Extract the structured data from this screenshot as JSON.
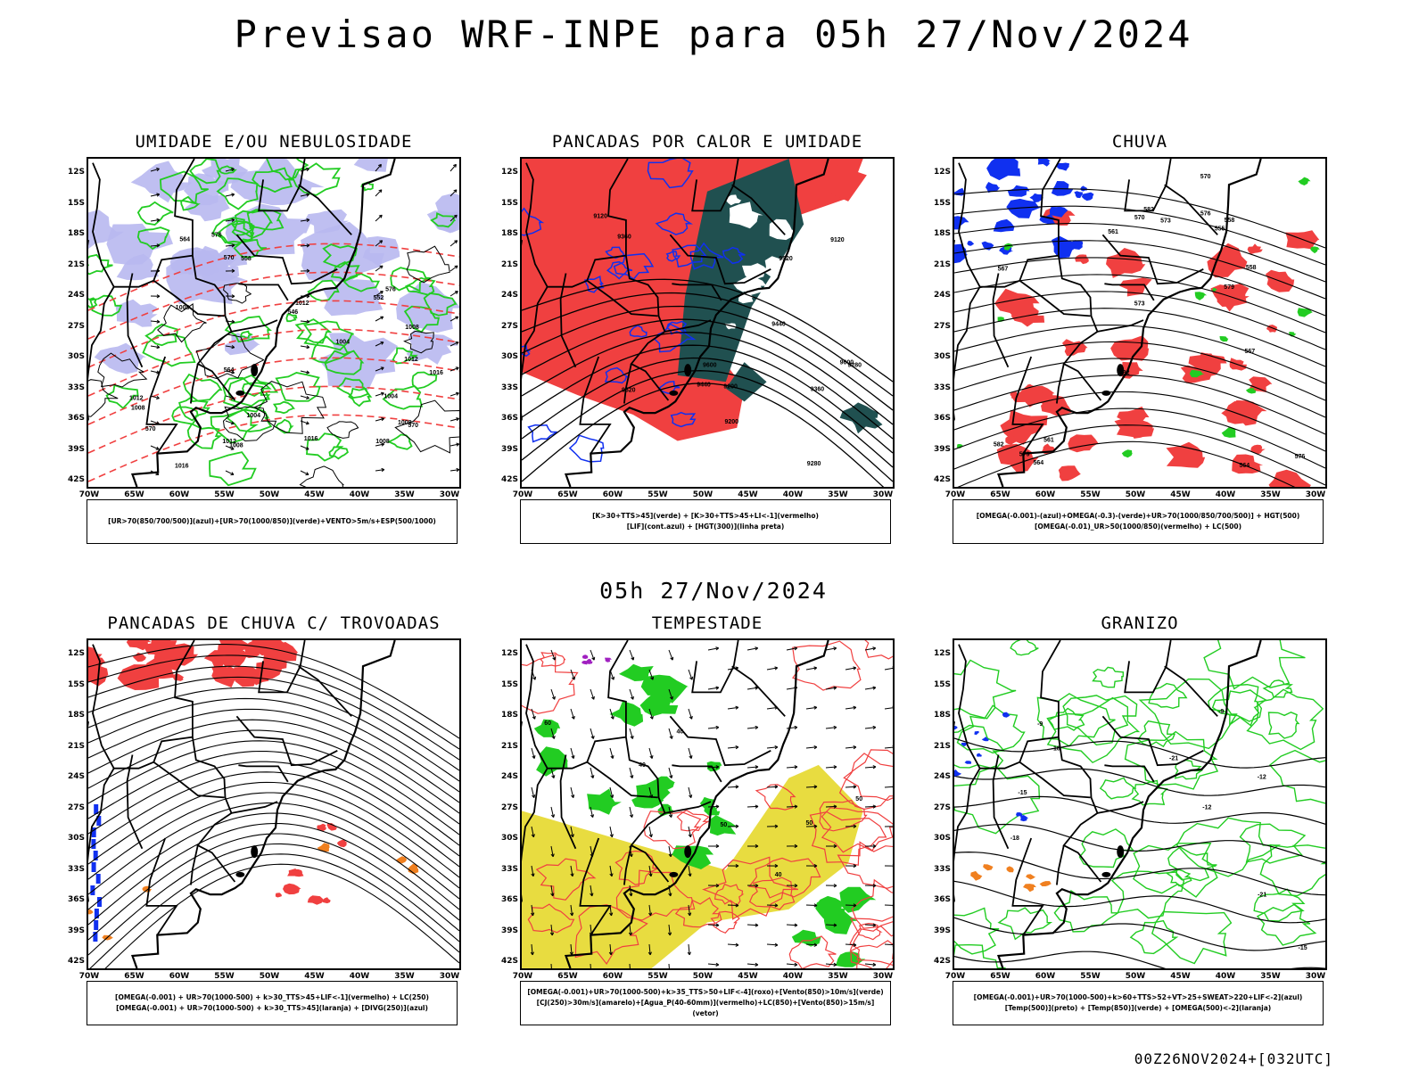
{
  "title": "Previsao WRF-INPE  para 05h 27/Nov/2024",
  "mid_title": "05h 27/Nov/2024",
  "footer": "00Z26NOV2024+[032UTC]",
  "axes": {
    "lat_labels": [
      "12S",
      "15S",
      "18S",
      "21S",
      "24S",
      "27S",
      "30S",
      "33S",
      "36S",
      "39S",
      "42S"
    ],
    "lon_labels": [
      "70W",
      "65W",
      "60W",
      "55W",
      "50W",
      "45W",
      "40W",
      "35W",
      "30W"
    ]
  },
  "colors": {
    "red": "#f04040",
    "green": "#22cc22",
    "blue": "#1030f0",
    "lavender": "#b8b8f0",
    "darkteal": "#205050",
    "yellow": "#e8dc40",
    "orange": "#f08020",
    "purple": "#a020c0"
  },
  "panels": [
    {
      "title": "UMIDADE E/OU NEBULOSIDADE",
      "legend": [
        "[UR>70(850/700/500)](azul)+[UR>70(1000/850)](verde)+VENTO>5m/s+ESP(500/1000)"
      ],
      "contour_labels": [
        "1012",
        "1008",
        "1008",
        "1004",
        "1016",
        "1012",
        "1016",
        "1008",
        "1004",
        "1012",
        "1008",
        "1016",
        "1004",
        "1012",
        "1008",
        "1008",
        "576",
        "570",
        "564",
        "570",
        "558",
        "552",
        "546",
        "570",
        "576",
        "564"
      ]
    },
    {
      "title": "PANCADAS POR CALOR E UMIDADE",
      "legend": [
        "[K>30+TTS>45](verde) + [K>30+TTS>45+LI<-1](vermelho)",
        "[LIF](cont.azul) + [HGT(300)](linha preta)"
      ],
      "contour_labels": [
        "9600",
        "9520",
        "9440",
        "9360",
        "9280",
        "9200",
        "9120",
        "9600",
        "9520",
        "9440",
        "9360",
        "9280",
        "9200",
        "9120"
      ]
    },
    {
      "title": "CHUVA",
      "legend": [
        "[OMEGA(-0.001)-(azul)+OMEGA(-0.3)-(verde)+UR>70(1000/850/700/500)] + HGT(500)",
        "[OMEGA(-0.01)_UR>50(1000/850)(vermelho) + LC(500)"
      ],
      "contour_labels": [
        "582",
        "582",
        "579",
        "576",
        "573",
        "570",
        "567",
        "564",
        "561",
        "558",
        "555",
        "582",
        "579",
        "576",
        "573",
        "570",
        "567",
        "564",
        "561",
        "558"
      ]
    },
    {
      "title": "PANCADAS DE CHUVA C/ TROVOADAS",
      "legend": [
        "[OMEGA(-0.001) + UR>70(1000-500) + k>30_TTS>45+LIF<-1](vermelho) + LC(250)",
        "[OMEGA(-0.001) + UR>70(1000-500) + k>30_TTS>45](laranja) + [DIVG(250)](azul)"
      ],
      "contour_labels": []
    },
    {
      "title": "TEMPESTADE",
      "legend": [
        "[OMEGA(-0.001)+UR>70(1000-500)+k>35_TTS>50+LIF<-4](roxo)+[Vento(850)>10m/s](verde)",
        "[CJ(250)>30m/s](amarelo)+[Agua_P(40-60mm)](vermelho)+LC(850)+[Vento(850)>15m/s](vetor)"
      ],
      "contour_labels": [
        "40",
        "50",
        "40",
        "50",
        "40",
        "60",
        "50"
      ]
    },
    {
      "title": "GRANIZO",
      "legend": [
        "[OMEGA(-0.001)+UR>70(1000-500)+k>60+TTS>52+VT>25+SWEAT>220+LIF<-2](azul)",
        "[Temp(500)](preto) + [Temp(850)](verde) + [OMEGA(500)<-2](laranja)"
      ],
      "contour_labels": [
        "-9",
        "-12",
        "-15",
        "-18",
        "-21",
        "-9",
        "-12",
        "-15",
        "-18",
        "-21"
      ]
    }
  ]
}
